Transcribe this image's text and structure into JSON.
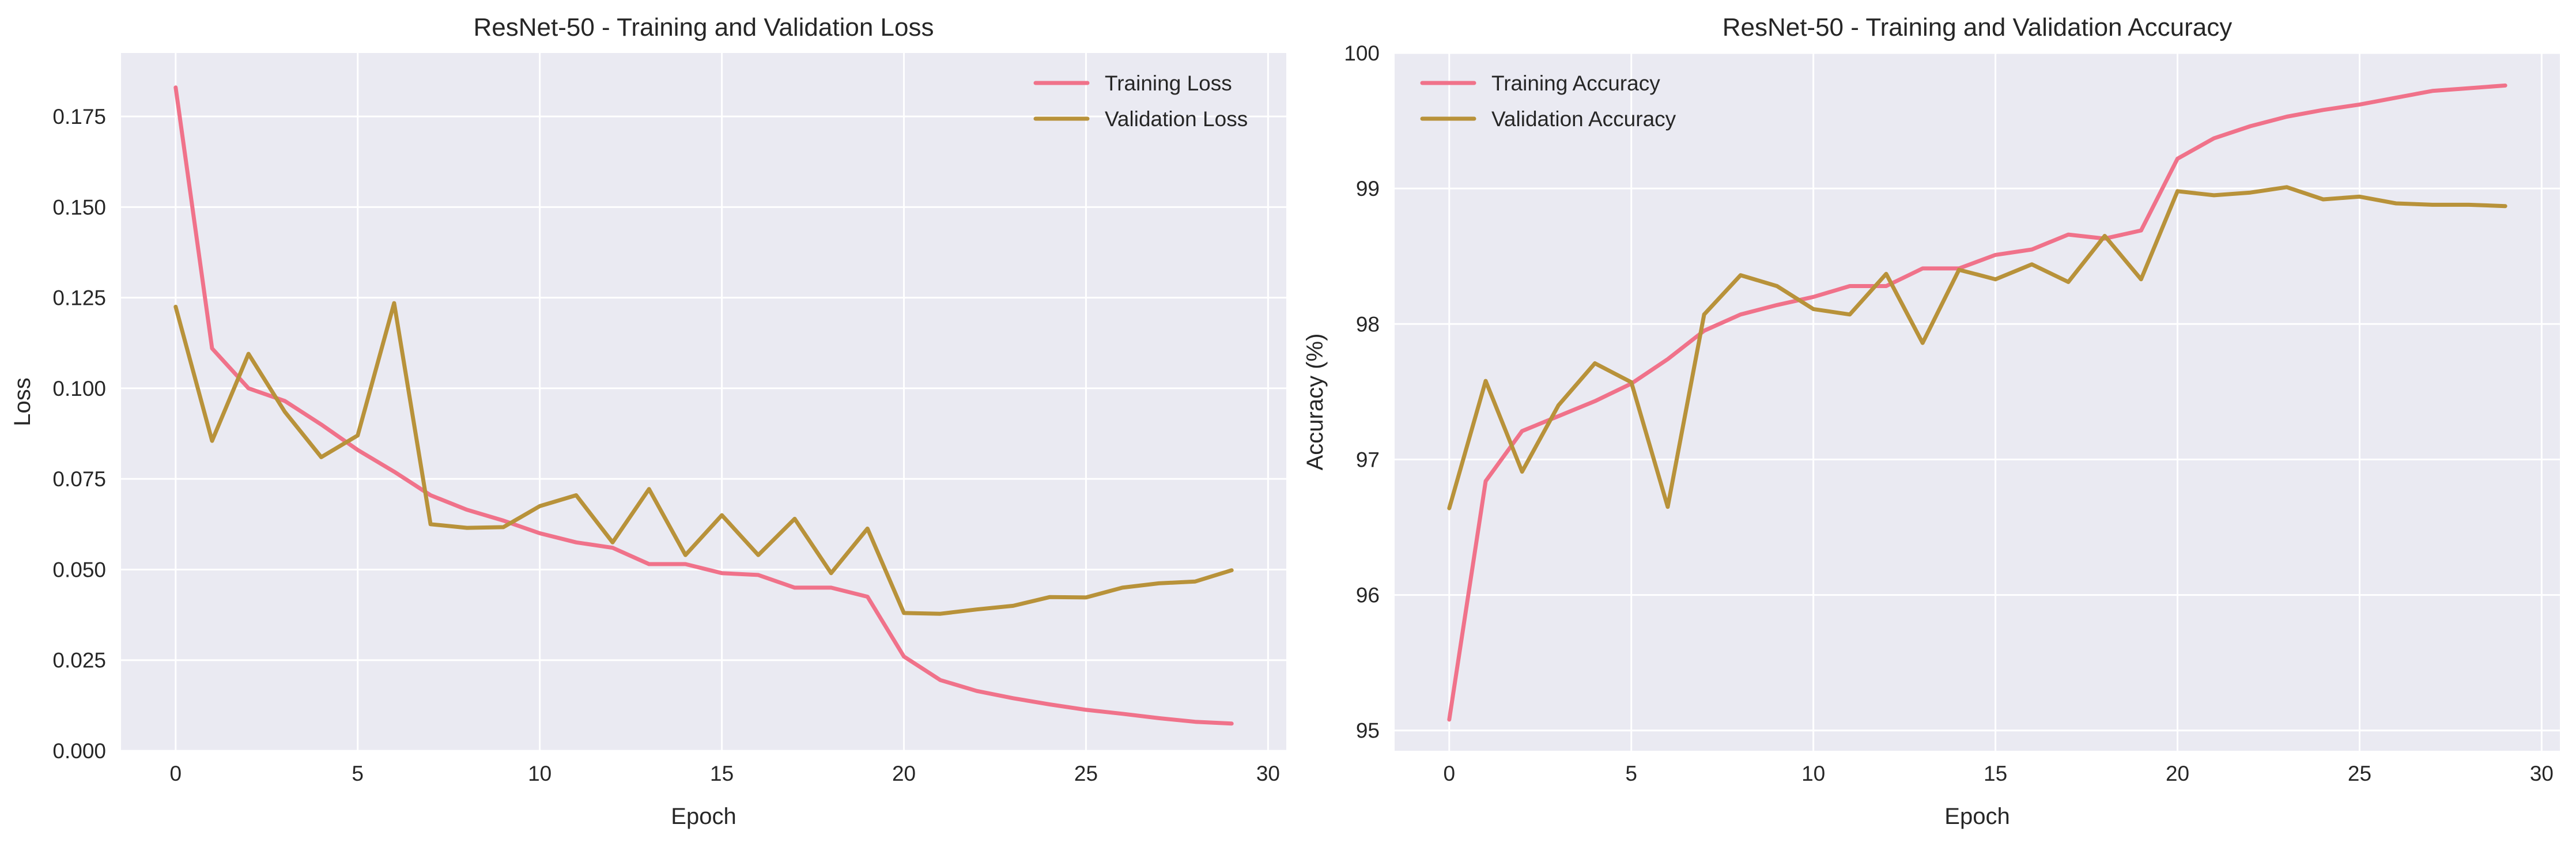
{
  "chart_data": [
    {
      "type": "line",
      "title": "ResNet-50 - Training and Validation Loss",
      "xlabel": "Epoch",
      "ylabel": "Loss",
      "xlim": [
        -1.5,
        30.5
      ],
      "ylim": [
        0.0,
        0.1925
      ],
      "x_ticks": [
        0,
        5,
        10,
        15,
        20,
        25,
        30
      ],
      "y_ticks": [
        0.0,
        0.025,
        0.05,
        0.075,
        0.1,
        0.125,
        0.15,
        0.175
      ],
      "y_tick_labels": [
        "0.000",
        "0.025",
        "0.050",
        "0.075",
        "0.100",
        "0.125",
        "0.150",
        "0.175"
      ],
      "grid": true,
      "legend_position": "top-right",
      "x": [
        0,
        1,
        2,
        3,
        4,
        5,
        6,
        7,
        8,
        9,
        10,
        11,
        12,
        13,
        14,
        15,
        16,
        17,
        18,
        19,
        20,
        21,
        22,
        23,
        24,
        25,
        26,
        27,
        28,
        29
      ],
      "series": [
        {
          "name": "Training Loss",
          "color": "#f0728a",
          "values": [
            0.183,
            0.111,
            0.1,
            0.0965,
            0.09,
            0.083,
            0.077,
            0.0705,
            0.0665,
            0.0635,
            0.06,
            0.0575,
            0.056,
            0.0515,
            0.0515,
            0.049,
            0.0485,
            0.045,
            0.045,
            0.0425,
            0.026,
            0.0195,
            0.0165,
            0.0145,
            0.0128,
            0.0113,
            0.0102,
            0.009,
            0.008,
            0.0075
          ]
        },
        {
          "name": "Validation Loss",
          "color": "#b8923a",
          "values": [
            0.1225,
            0.0855,
            0.1095,
            0.0935,
            0.081,
            0.087,
            0.1235,
            0.0625,
            0.0615,
            0.0617,
            0.0675,
            0.0705,
            0.0575,
            0.0722,
            0.054,
            0.065,
            0.054,
            0.064,
            0.049,
            0.0613,
            0.038,
            0.0378,
            0.039,
            0.04,
            0.0424,
            0.0423,
            0.045,
            0.0462,
            0.0467,
            0.0498
          ]
        }
      ]
    },
    {
      "type": "line",
      "title": "ResNet-50 - Training and Validation Accuracy",
      "xlabel": "Epoch",
      "ylabel": "Accuracy (%)",
      "xlim": [
        -1.5,
        30.5
      ],
      "ylim": [
        94.85,
        100.0
      ],
      "x_ticks": [
        0,
        5,
        10,
        15,
        20,
        25,
        30
      ],
      "y_ticks": [
        95,
        96,
        97,
        98,
        99,
        100
      ],
      "y_tick_labels": [
        "95",
        "96",
        "97",
        "98",
        "99",
        "100"
      ],
      "grid": true,
      "legend_position": "top-left",
      "x": [
        0,
        1,
        2,
        3,
        4,
        5,
        6,
        7,
        8,
        9,
        10,
        11,
        12,
        13,
        14,
        15,
        16,
        17,
        18,
        19,
        20,
        21,
        22,
        23,
        24,
        25,
        26,
        27,
        28,
        29
      ],
      "series": [
        {
          "name": "Training Accuracy",
          "color": "#f0728a",
          "values": [
            95.08,
            96.84,
            97.21,
            97.32,
            97.43,
            97.56,
            97.74,
            97.95,
            98.07,
            98.14,
            98.2,
            98.28,
            98.28,
            98.41,
            98.41,
            98.51,
            98.55,
            98.66,
            98.63,
            98.69,
            99.22,
            99.37,
            99.46,
            99.53,
            99.58,
            99.62,
            99.67,
            99.72,
            99.74,
            99.76
          ]
        },
        {
          "name": "Validation Accuracy",
          "color": "#b8923a",
          "values": [
            96.64,
            97.58,
            96.91,
            97.4,
            97.71,
            97.57,
            96.65,
            98.07,
            98.36,
            98.28,
            98.11,
            98.07,
            98.37,
            97.86,
            98.4,
            98.33,
            98.44,
            98.31,
            98.65,
            98.33,
            98.98,
            98.95,
            98.97,
            99.01,
            98.92,
            98.94,
            98.89,
            98.88,
            98.88,
            98.87
          ]
        }
      ]
    }
  ]
}
